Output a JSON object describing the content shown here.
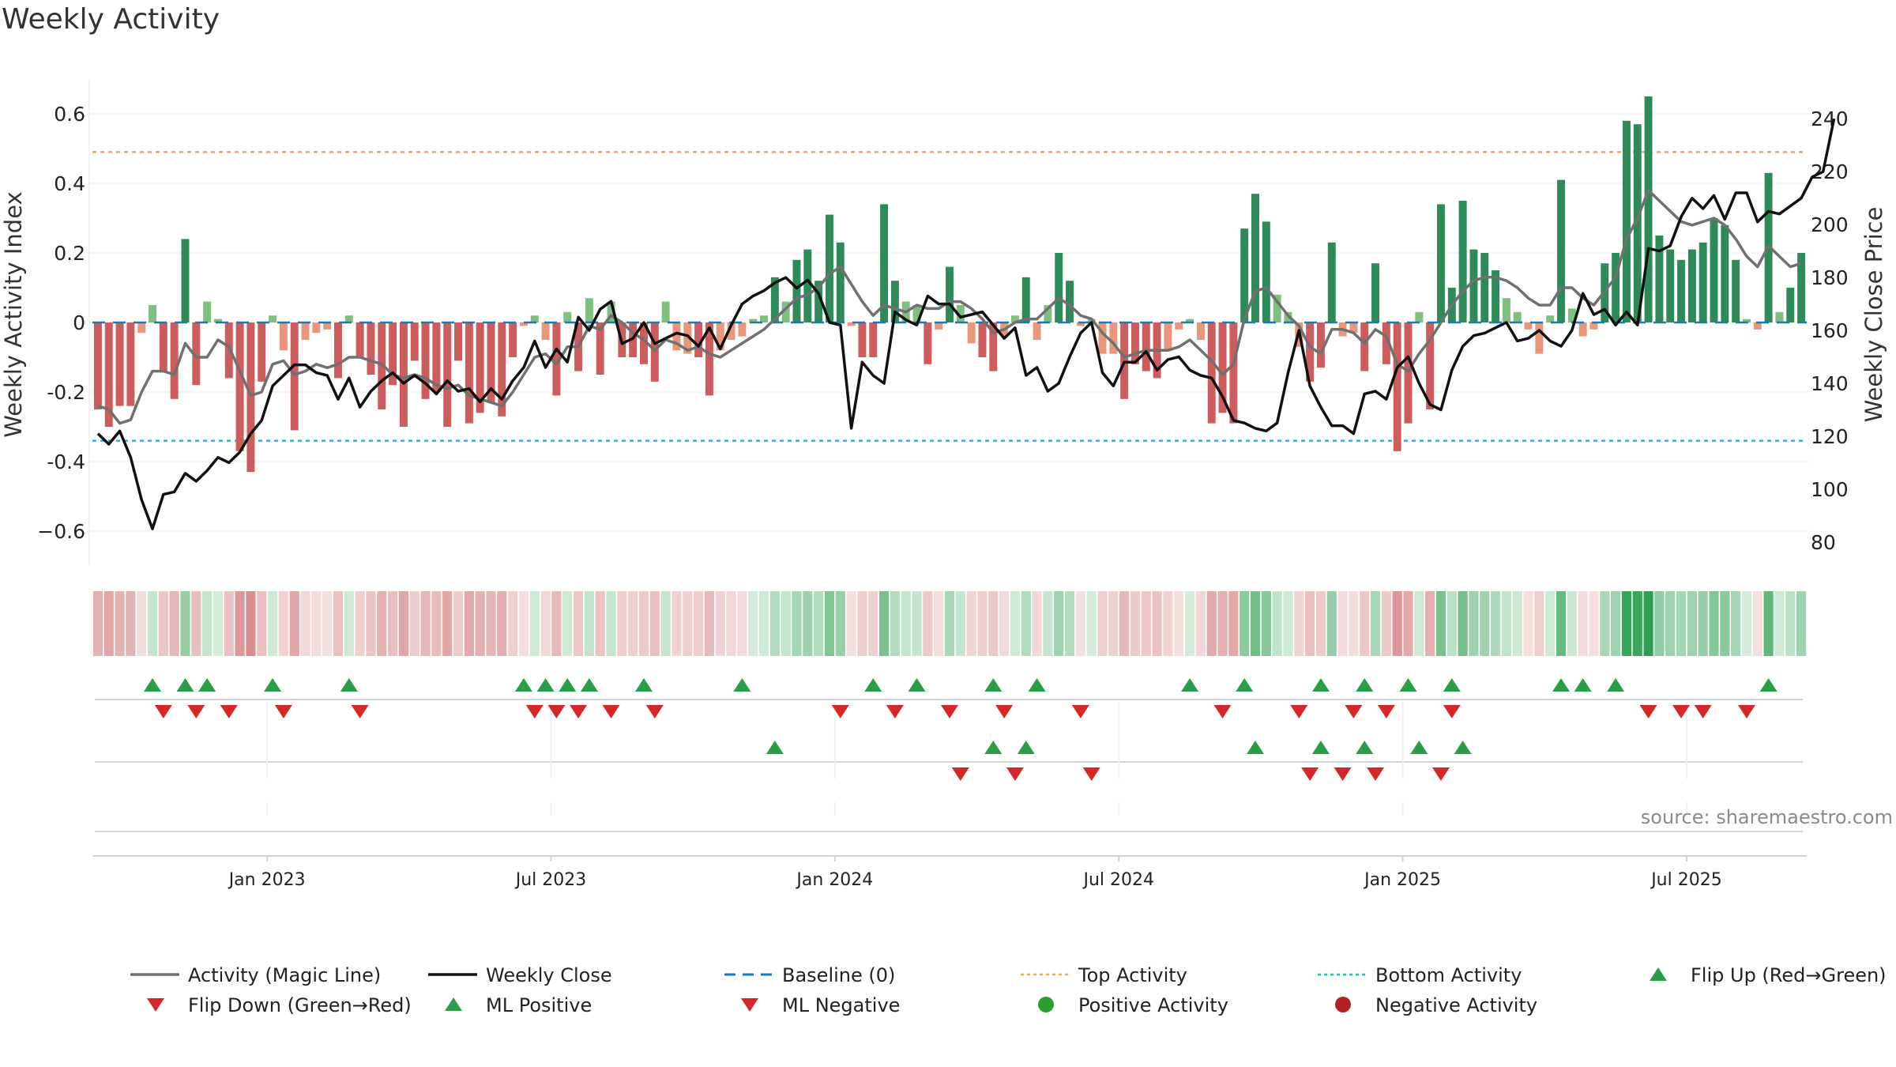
{
  "chart_data": {
    "type": "bar",
    "title": "Weekly Activity",
    "ylabel_left": "Weekly Activity Index",
    "ylabel_right": "Weekly Close Price",
    "source": "source: sharemaestro.com",
    "left_axis": {
      "ylim": [
        -0.7,
        0.7
      ],
      "ticks": [
        -0.6,
        -0.4,
        -0.2,
        0,
        0.2,
        0.4,
        0.6
      ],
      "tick_labels": [
        "−0.6",
        "-0.4",
        "-0.2",
        "0",
        "0.2",
        "0.4",
        "0.6"
      ]
    },
    "right_axis": {
      "ylim": [
        71,
        255
      ],
      "ticks": [
        80,
        100,
        120,
        140,
        160,
        180,
        200,
        220,
        240
      ],
      "tick_labels": [
        "80",
        "100",
        "120",
        "140",
        "160",
        "180",
        "200",
        "220",
        "240"
      ]
    },
    "x_axis": {
      "ticks": [
        15.5,
        41.5,
        67.5,
        93.5,
        119.5,
        145.5
      ],
      "tick_labels": [
        "Jan 2023",
        "Jul 2023",
        "Jan 2024",
        "Jul 2024",
        "Jan 2025",
        "Jul 2025"
      ]
    },
    "top_activity": 0.49,
    "bottom_activity": -0.34,
    "colors": {
      "pos_strong": "#2e8b57",
      "pos_light": "#7fbf7f",
      "neg_strong": "#cd5c5c",
      "neg_light": "#e9967a",
      "magic": "#707070",
      "close": "#111111",
      "baseline": "#1f77b4",
      "top": "#f4a460",
      "bottom": "#17becf",
      "flip_up": "#2a9d4a",
      "flip_down": "#d62728",
      "pos_dot": "#2ca02c",
      "neg_dot": "#b22222"
    },
    "activity": [
      -0.25,
      -0.3,
      -0.24,
      -0.24,
      -0.03,
      0.05,
      -0.14,
      -0.22,
      0.24,
      -0.18,
      0.06,
      0.01,
      -0.16,
      -0.37,
      -0.43,
      -0.17,
      0.02,
      -0.08,
      -0.31,
      -0.05,
      -0.03,
      -0.02,
      -0.16,
      0.02,
      -0.1,
      -0.15,
      -0.25,
      -0.18,
      -0.3,
      -0.11,
      -0.22,
      -0.2,
      -0.3,
      -0.11,
      -0.29,
      -0.26,
      -0.23,
      -0.27,
      -0.1,
      -0.01,
      0.02,
      -0.05,
      -0.21,
      0.03,
      -0.14,
      0.07,
      -0.15,
      0.06,
      -0.1,
      -0.1,
      -0.12,
      -0.17,
      0.06,
      -0.08,
      -0.09,
      -0.1,
      -0.21,
      -0.08,
      -0.05,
      -0.04,
      0.01,
      0.02,
      0.13,
      0.06,
      0.18,
      0.21,
      0.12,
      0.31,
      0.23,
      -0.01,
      -0.1,
      -0.1,
      0.34,
      0.12,
      0.06,
      0.05,
      -0.12,
      -0.02,
      0.16,
      0.05,
      -0.06,
      -0.1,
      -0.14,
      -0.04,
      0.02,
      0.13,
      -0.05,
      0.05,
      0.2,
      0.12,
      -0.01,
      0.01,
      -0.09,
      -0.09,
      -0.22,
      -0.12,
      -0.14,
      -0.16,
      -0.08,
      -0.02,
      0.01,
      -0.05,
      -0.29,
      -0.26,
      -0.29,
      0.27,
      0.37,
      0.29,
      0.08,
      0.03,
      -0.07,
      -0.17,
      -0.13,
      0.23,
      -0.04,
      -0.03,
      -0.14,
      0.17,
      -0.12,
      -0.37,
      -0.29,
      0.03,
      -0.25,
      0.34,
      0.1,
      0.35,
      0.21,
      0.2,
      0.15,
      0.07,
      0.03,
      -0.02,
      -0.09,
      0.02,
      0.41,
      0.04,
      -0.04,
      -0.02,
      0.17,
      0.2,
      0.58,
      0.57,
      0.65,
      0.25,
      0.21,
      0.18,
      0.21,
      0.23,
      0.3,
      0.28,
      0.18,
      0.01,
      -0.02,
      0.43,
      0.03,
      0.1,
      0.2
    ],
    "magic_line": [
      -0.24,
      -0.25,
      -0.29,
      -0.28,
      -0.2,
      -0.14,
      -0.14,
      -0.15,
      -0.06,
      -0.1,
      -0.1,
      -0.05,
      -0.07,
      -0.14,
      -0.21,
      -0.2,
      -0.12,
      -0.11,
      -0.15,
      -0.14,
      -0.12,
      -0.13,
      -0.12,
      -0.1,
      -0.1,
      -0.11,
      -0.12,
      -0.15,
      -0.16,
      -0.15,
      -0.16,
      -0.18,
      -0.19,
      -0.18,
      -0.21,
      -0.22,
      -0.23,
      -0.24,
      -0.2,
      -0.15,
      -0.1,
      -0.09,
      -0.12,
      -0.07,
      -0.07,
      -0.01,
      -0.02,
      0.02,
      0.0,
      -0.03,
      -0.05,
      -0.08,
      -0.05,
      -0.06,
      -0.08,
      -0.07,
      -0.09,
      -0.1,
      -0.08,
      -0.06,
      -0.04,
      -0.02,
      0.01,
      0.04,
      0.07,
      0.08,
      0.1,
      0.14,
      0.16,
      0.11,
      0.06,
      0.02,
      0.05,
      0.04,
      0.03,
      0.05,
      0.04,
      0.04,
      0.06,
      0.06,
      0.04,
      0.01,
      -0.03,
      -0.02,
      0.0,
      0.01,
      0.01,
      0.04,
      0.07,
      0.05,
      0.02,
      0.01,
      -0.03,
      -0.06,
      -0.1,
      -0.09,
      -0.08,
      -0.08,
      -0.08,
      -0.07,
      -0.05,
      -0.08,
      -0.11,
      -0.15,
      -0.12,
      0.01,
      0.09,
      0.1,
      0.06,
      0.02,
      -0.01,
      -0.07,
      -0.09,
      -0.02,
      -0.02,
      -0.03,
      -0.06,
      -0.02,
      -0.04,
      -0.12,
      -0.14,
      -0.09,
      -0.05,
      0.0,
      0.05,
      0.09,
      0.12,
      0.13,
      0.13,
      0.12,
      0.1,
      0.07,
      0.05,
      0.05,
      0.1,
      0.1,
      0.07,
      0.05,
      0.09,
      0.13,
      0.24,
      0.3,
      0.38,
      0.35,
      0.32,
      0.29,
      0.28,
      0.29,
      0.3,
      0.28,
      0.24,
      0.19,
      0.16,
      0.22,
      0.19,
      0.16,
      0.17
    ],
    "weekly_close": [
      121,
      117,
      122,
      112,
      96,
      85,
      98,
      99,
      106,
      103,
      107,
      112,
      110,
      114,
      121,
      126,
      139,
      143,
      147,
      147,
      144,
      143,
      134,
      142,
      131,
      137,
      141,
      144,
      140,
      143,
      140,
      136,
      141,
      137,
      138,
      133,
      138,
      134,
      141,
      146,
      156,
      146,
      153,
      148,
      165,
      160,
      168,
      171,
      155,
      157,
      163,
      155,
      157,
      159,
      158,
      154,
      161,
      153,
      162,
      170,
      173,
      175,
      178,
      180,
      176,
      179,
      174,
      163,
      162,
      123,
      148,
      143,
      140,
      167,
      164,
      162,
      173,
      170,
      170,
      165,
      166,
      167,
      162,
      157,
      161,
      143,
      146,
      137,
      140,
      150,
      159,
      163,
      144,
      139,
      148,
      148,
      152,
      145,
      149,
      150,
      145,
      143,
      142,
      135,
      126,
      125,
      123,
      122,
      125,
      144,
      160,
      139,
      131,
      124,
      124,
      121,
      136,
      137,
      134,
      146,
      150,
      140,
      132,
      130,
      145,
      154,
      158,
      159,
      161,
      163,
      156,
      157,
      160,
      156,
      154,
      160,
      174,
      166,
      168,
      162,
      167,
      162,
      191,
      190,
      192,
      203,
      210,
      206,
      211,
      202,
      212,
      212,
      201,
      205,
      204,
      207,
      210,
      218,
      220,
      240
    ],
    "heat_strip": [
      -0.25,
      -0.3,
      -0.24,
      -0.24,
      -0.03,
      0.05,
      -0.14,
      -0.22,
      0.24,
      -0.18,
      0.06,
      0.01,
      -0.16,
      -0.37,
      -0.43,
      -0.17,
      0.02,
      -0.08,
      -0.31,
      -0.05,
      -0.03,
      -0.02,
      -0.16,
      0.02,
      -0.1,
      -0.15,
      -0.25,
      -0.18,
      -0.3,
      -0.11,
      -0.22,
      -0.2,
      -0.3,
      -0.11,
      -0.29,
      -0.26,
      -0.23,
      -0.27,
      -0.1,
      -0.01,
      0.02,
      -0.05,
      -0.21,
      0.03,
      -0.14,
      0.07,
      -0.15,
      0.06,
      -0.1,
      -0.1,
      -0.12,
      -0.17,
      0.06,
      -0.08,
      -0.09,
      -0.1,
      -0.21,
      -0.08,
      -0.05,
      -0.04,
      0.01,
      0.02,
      0.13,
      0.06,
      0.18,
      0.21,
      0.12,
      0.31,
      0.23,
      -0.01,
      -0.1,
      -0.1,
      0.34,
      0.12,
      0.06,
      0.05,
      -0.12,
      -0.02,
      0.16,
      0.05,
      -0.06,
      -0.1,
      -0.14,
      -0.04,
      0.02,
      0.13,
      -0.05,
      0.05,
      0.2,
      0.12,
      -0.01,
      0.01,
      -0.09,
      -0.09,
      -0.22,
      -0.12,
      -0.14,
      -0.16,
      -0.08,
      -0.02,
      0.01,
      -0.05,
      -0.29,
      -0.26,
      -0.29,
      0.27,
      0.37,
      0.29,
      0.08,
      0.03,
      -0.07,
      -0.17,
      -0.13,
      0.23,
      -0.04,
      -0.03,
      -0.14,
      0.17,
      -0.12,
      -0.37,
      -0.29,
      0.03,
      -0.25,
      0.34,
      0.1,
      0.35,
      0.21,
      0.2,
      0.15,
      0.07,
      0.03,
      -0.02,
      -0.09,
      0.02,
      0.41,
      0.04,
      -0.04,
      -0.02,
      0.17,
      0.2,
      0.58,
      0.57,
      0.65,
      0.25,
      0.21,
      0.18,
      0.21,
      0.23,
      0.3,
      0.28,
      0.18,
      0.01,
      -0.02,
      0.43,
      0.03,
      0.1,
      0.2
    ],
    "flip_up_weeks": [
      5,
      8,
      10,
      16,
      23,
      39,
      41,
      43,
      45,
      50,
      59,
      71,
      75,
      82,
      86,
      100,
      105,
      112,
      116,
      120,
      124,
      134,
      136,
      139,
      153
    ],
    "flip_down_weeks": [
      6,
      9,
      12,
      17,
      24,
      40,
      42,
      44,
      47,
      51,
      68,
      73,
      78,
      83,
      90,
      103,
      110,
      115,
      118,
      124,
      142,
      145,
      147,
      151
    ],
    "ml_positive_weeks": [
      62,
      82,
      85,
      106,
      112,
      116,
      121,
      125
    ],
    "ml_negative_weeks": [
      79,
      84,
      91,
      111,
      114,
      117,
      123
    ],
    "legend": [
      {
        "label": "Activity (Magic Line)",
        "kind": "line-solid-gray"
      },
      {
        "label": "Weekly Close",
        "kind": "line-solid-black"
      },
      {
        "label": "Baseline (0)",
        "kind": "line-dashed-blue"
      },
      {
        "label": "Top Activity",
        "kind": "line-dotted-orange"
      },
      {
        "label": "Bottom Activity",
        "kind": "line-dotted-cyan"
      },
      {
        "label": "Flip Up (Red→Green)",
        "kind": "triangle-up"
      },
      {
        "label": "Flip Down (Green→Red)",
        "kind": "triangle-down"
      },
      {
        "label": "ML Positive",
        "kind": "triangle-up"
      },
      {
        "label": "ML Negative",
        "kind": "triangle-down"
      },
      {
        "label": "Positive Activity",
        "kind": "dot-green"
      },
      {
        "label": "Negative Activity",
        "kind": "dot-red"
      }
    ]
  }
}
